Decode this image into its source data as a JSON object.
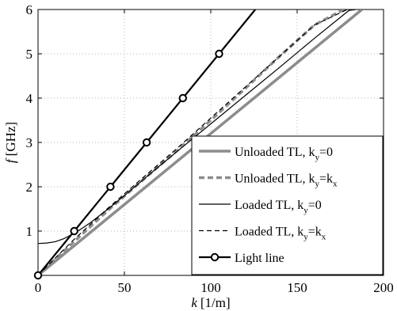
{
  "chart_data": {
    "type": "line",
    "xlabel_var": "k",
    "xlabel_unit": "[1/m]",
    "ylabel_var": "f",
    "ylabel_unit": "[GHz]",
    "xlim": [
      0,
      200
    ],
    "ylim": [
      0,
      6
    ],
    "xticks": [
      0,
      50,
      100,
      150,
      200
    ],
    "yticks": [
      1,
      2,
      3,
      4,
      5,
      6
    ],
    "grid": true,
    "legend_placement": "bottom-right",
    "series": [
      {
        "name_main": "Unloaded TL, k",
        "name_sub": "y",
        "name_tail": "=0",
        "style": "thick-solid-gray",
        "color": "#8c8c8c",
        "x": [
          0,
          187.5
        ],
        "y": [
          0,
          6.0
        ]
      },
      {
        "name_main": "Unloaded TL, k",
        "name_sub": "y",
        "name_tail": "=k",
        "name_sub2": "x",
        "style": "thick-dashed-gray",
        "color": "#8c8c8c",
        "x": [
          0,
          15,
          40,
          60,
          80,
          100,
          120,
          140,
          160,
          177
        ],
        "y": [
          0,
          0.55,
          1.45,
          2.13,
          2.8,
          3.5,
          4.22,
          4.95,
          5.65,
          6.0
        ]
      },
      {
        "name_main": "Loaded TL, k",
        "name_sub": "y",
        "name_tail": "=0",
        "style": "thin-solid-black",
        "color": "#000000",
        "x": [
          0,
          5,
          10,
          15,
          20,
          25,
          30,
          40,
          50,
          60,
          70,
          80,
          100,
          120,
          140,
          160,
          180,
          184
        ],
        "y": [
          0.72,
          0.73,
          0.76,
          0.83,
          0.93,
          1.05,
          1.18,
          1.48,
          1.8,
          2.13,
          2.46,
          2.78,
          3.42,
          4.06,
          4.7,
          5.35,
          5.98,
          6.0
        ]
      },
      {
        "name_main": "Loaded TL, k",
        "name_sub": "y",
        "name_tail": "=k",
        "name_sub2": "x",
        "style": "thin-dashed-black",
        "color": "#000000",
        "x": [
          0,
          20,
          40,
          60,
          80,
          100,
          120,
          140,
          160,
          179
        ],
        "y": [
          0,
          0.78,
          1.5,
          2.18,
          2.85,
          3.55,
          4.25,
          4.95,
          5.65,
          6.0
        ]
      },
      {
        "name_main": "Light line",
        "name_sub": "",
        "name_tail": "",
        "style": "thick-solid-black-markers",
        "color": "#000000",
        "x": [
          0,
          20.96,
          41.92,
          62.88,
          83.84,
          104.8,
          125.76
        ],
        "y": [
          0,
          1,
          2,
          3,
          4,
          5,
          6
        ],
        "markers": [
          0,
          20.96,
          41.92,
          62.88,
          83.84,
          104.8
        ]
      }
    ]
  }
}
